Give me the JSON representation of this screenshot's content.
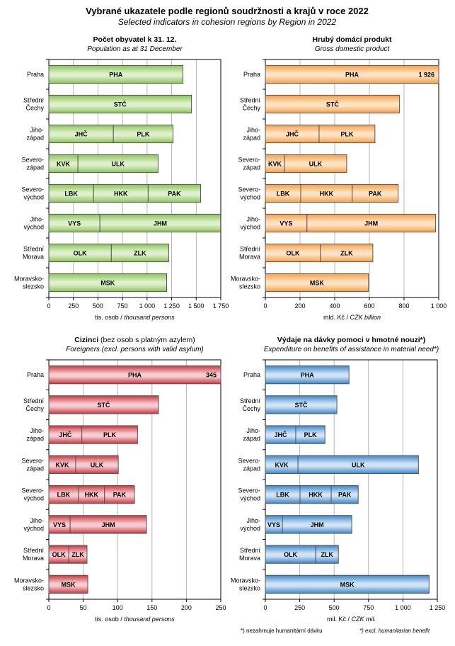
{
  "title": "Vybrané ukazatele podle regionů soudržnosti  a krajů v roce 2022",
  "subtitle": "Selected indicators in cohesion regions  by Region  in 2022",
  "footnote_cz": "*) nezahrnuje humanitární dávku",
  "footnote_en": "*) excl. humanitarian benefit",
  "categories": [
    [
      "Praha"
    ],
    [
      "Střední",
      "Čechy"
    ],
    [
      "Jiho-",
      "západ"
    ],
    [
      "Severo-",
      "západ"
    ],
    [
      "Severo-",
      "východ"
    ],
    [
      "Jiho-",
      "východ"
    ],
    [
      "Střední",
      "Morava"
    ],
    [
      "Moravsko-",
      "slezsko"
    ]
  ],
  "chart_data": [
    {
      "type": "bar",
      "stacked": true,
      "orientation": "horizontal",
      "title": "Počet obyvatel k 31. 12.",
      "subtitle": "Population as at 31 December",
      "xlabel_cz": "tis. osob / ",
      "xlabel_en": "thousand persons",
      "xlim": [
        0,
        1750
      ],
      "ticks": [
        0,
        250,
        500,
        750,
        1000,
        1250,
        1500,
        1750
      ],
      "tick_labels": [
        "0",
        "250",
        "500",
        "750",
        "1 000",
        "1 250",
        "1 500",
        "1 750"
      ],
      "grid": true,
      "color": "#8cc45a",
      "color_light": "#def0cb",
      "rows": [
        [
          {
            "code": "PHA",
            "value": 1365
          }
        ],
        [
          {
            "code": "STČ",
            "value": 1452
          }
        ],
        [
          {
            "code": "JHČ",
            "value": 657
          },
          {
            "code": "PLK",
            "value": 607
          }
        ],
        [
          {
            "code": "KVK",
            "value": 296
          },
          {
            "code": "ULK",
            "value": 816
          }
        ],
        [
          {
            "code": "LBK",
            "value": 455
          },
          {
            "code": "HKK",
            "value": 556
          },
          {
            "code": "PAK",
            "value": 534
          }
        ],
        [
          {
            "code": "VYS",
            "value": 520
          },
          {
            "code": "JHM",
            "value": 1228
          }
        ],
        [
          {
            "code": "OLK",
            "value": 636
          },
          {
            "code": "ZLK",
            "value": 584
          }
        ],
        [
          {
            "code": "MSK",
            "value": 1199
          }
        ]
      ]
    },
    {
      "type": "bar",
      "stacked": true,
      "orientation": "horizontal",
      "title": "Hrubý domácí produkt",
      "subtitle": "Gross domestic product",
      "xlabel_cz": "mld. Kč / ",
      "xlabel_en": "CZK billion",
      "xlim": [
        0,
        1000
      ],
      "ticks": [
        0,
        200,
        400,
        600,
        800,
        1000
      ],
      "tick_labels": [
        "0",
        "200",
        "400",
        "600",
        "800",
        "1 000"
      ],
      "grid": true,
      "color": "#f5a04a",
      "color_light": "#fde2c2",
      "rows": [
        [
          {
            "code": "PHA",
            "value": 1926,
            "value_label": "1 926"
          }
        ],
        [
          {
            "code": "STČ",
            "value": 774
          }
        ],
        [
          {
            "code": "JHČ",
            "value": 310
          },
          {
            "code": "PLK",
            "value": 322
          }
        ],
        [
          {
            "code": "KVK",
            "value": 110
          },
          {
            "code": "ULK",
            "value": 359
          }
        ],
        [
          {
            "code": "LBK",
            "value": 204
          },
          {
            "code": "HKK",
            "value": 297
          },
          {
            "code": "PAK",
            "value": 265
          }
        ],
        [
          {
            "code": "VYS",
            "value": 240
          },
          {
            "code": "JHM",
            "value": 742
          }
        ],
        [
          {
            "code": "OLK",
            "value": 318
          },
          {
            "code": "ZLK",
            "value": 302
          }
        ],
        [
          {
            "code": "MSK",
            "value": 595
          }
        ]
      ]
    },
    {
      "type": "bar",
      "stacked": true,
      "orientation": "horizontal",
      "title": "Cizinci",
      "title_rest": " (bez osob s platným azylem)",
      "subtitle": "Foreigners (excl. persons with valid asylum)",
      "xlabel_cz": "tis. osob / ",
      "xlabel_en": "thousand persons",
      "xlim": [
        0,
        250
      ],
      "ticks": [
        0,
        50,
        100,
        150,
        200,
        250
      ],
      "tick_labels": [
        "0",
        "50",
        "100",
        "150",
        "200",
        "250"
      ],
      "grid": true,
      "color": "#c83840",
      "color_light": "#f6ccd0",
      "rows": [
        [
          {
            "code": "PHA",
            "value": 345,
            "value_label": "345"
          }
        ],
        [
          {
            "code": "STČ",
            "value": 159.5
          }
        ],
        [
          {
            "code": "JHČ",
            "value": 48
          },
          {
            "code": "PLK",
            "value": 81
          }
        ],
        [
          {
            "code": "KVK",
            "value": 39
          },
          {
            "code": "ULK",
            "value": 62
          }
        ],
        [
          {
            "code": "LBK",
            "value": 43
          },
          {
            "code": "HKK",
            "value": 38
          },
          {
            "code": "PAK",
            "value": 43.5
          }
        ],
        [
          {
            "code": "VYS",
            "value": 31
          },
          {
            "code": "JHM",
            "value": 111
          }
        ],
        [
          {
            "code": "OLK",
            "value": 29
          },
          {
            "code": "ZLK",
            "value": 26.5
          }
        ],
        [
          {
            "code": "MSK",
            "value": 56.6
          }
        ]
      ]
    },
    {
      "type": "bar",
      "stacked": true,
      "orientation": "horizontal",
      "title": "Výdaje na dávky pomoci v hmotné nouzi*)",
      "subtitle": "Expenditure on benefits of assistance in material need*)",
      "xlabel_cz": "mil. Kč / ",
      "xlabel_en": "CZK mil.",
      "xlim": [
        0,
        1250
      ],
      "ticks": [
        0,
        250,
        500,
        750,
        1000,
        1250
      ],
      "tick_labels": [
        "0",
        "250",
        "500",
        "750",
        "1 000",
        "1 250"
      ],
      "grid": true,
      "color": "#3d86c8",
      "color_light": "#cfe3f5",
      "rows": [
        [
          {
            "code": "PHA",
            "value": 608
          }
        ],
        [
          {
            "code": "STČ",
            "value": 520
          }
        ],
        [
          {
            "code": "JHČ",
            "value": 221
          },
          {
            "code": "PLK",
            "value": 212
          }
        ],
        [
          {
            "code": "KVK",
            "value": 237
          },
          {
            "code": "ULK",
            "value": 876
          }
        ],
        [
          {
            "code": "LBK",
            "value": 252
          },
          {
            "code": "HKK",
            "value": 227
          },
          {
            "code": "PAK",
            "value": 196
          }
        ],
        [
          {
            "code": "VYS",
            "value": 124
          },
          {
            "code": "JHM",
            "value": 504
          }
        ],
        [
          {
            "code": "OLK",
            "value": 366
          },
          {
            "code": "ZLK",
            "value": 165
          }
        ],
        [
          {
            "code": "MSK",
            "value": 1190
          }
        ]
      ]
    }
  ]
}
